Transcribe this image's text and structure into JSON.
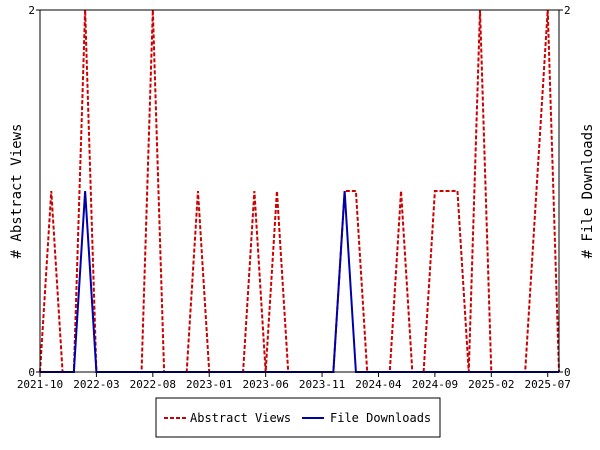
{
  "chart_data": {
    "type": "line",
    "title": "",
    "xlabel": "",
    "ylabel_left": "# Abstract Views",
    "ylabel_right": "# File Downloads",
    "x_tick_labels": [
      "2021-10",
      "2022-03",
      "2022-08",
      "2023-01",
      "2023-06",
      "2023-11",
      "2024-04",
      "2024-09",
      "2025-02",
      "2025-07"
    ],
    "y_left_ticks": [
      "0",
      "2"
    ],
    "y_right_ticks": [
      "0",
      "2"
    ],
    "ylim": [
      0,
      2
    ],
    "xlim": [
      "2021-10",
      "2025-08"
    ],
    "grid": false,
    "legend_position": "bottom-center",
    "x": [
      "2021-10",
      "2021-11",
      "2021-12",
      "2022-01",
      "2022-02",
      "2022-03",
      "2022-04",
      "2022-05",
      "2022-06",
      "2022-07",
      "2022-08",
      "2022-09",
      "2022-10",
      "2022-11",
      "2022-12",
      "2023-01",
      "2023-02",
      "2023-03",
      "2023-04",
      "2023-05",
      "2023-06",
      "2023-07",
      "2023-08",
      "2023-09",
      "2023-10",
      "2023-11",
      "2023-12",
      "2024-01",
      "2024-02",
      "2024-03",
      "2024-04",
      "2024-05",
      "2024-06",
      "2024-07",
      "2024-08",
      "2024-09",
      "2024-10",
      "2024-11",
      "2024-12",
      "2025-01",
      "2025-02",
      "2025-03",
      "2025-04",
      "2025-05",
      "2025-06",
      "2025-07",
      "2025-08"
    ],
    "series": [
      {
        "name": "Abstract Views",
        "color": "#cc0000",
        "dash": true,
        "values": [
          0,
          1,
          0,
          0,
          2,
          0,
          0,
          0,
          0,
          0,
          2,
          0,
          0,
          0,
          1,
          0,
          0,
          0,
          0,
          1,
          0,
          1,
          0,
          0,
          0,
          0,
          0,
          1,
          1,
          0,
          0,
          0,
          1,
          0,
          0,
          1,
          1,
          1,
          0,
          2,
          0,
          0,
          0,
          0,
          1,
          2,
          0
        ]
      },
      {
        "name": "File Downloads",
        "color": "#0000aa",
        "dash": false,
        "values": [
          0,
          0,
          0,
          0,
          1,
          0,
          0,
          0,
          0,
          0,
          0,
          0,
          0,
          0,
          0,
          0,
          0,
          0,
          0,
          0,
          0,
          0,
          0,
          0,
          0,
          0,
          0,
          1,
          0,
          0,
          0,
          0,
          0,
          0,
          0,
          0,
          0,
          0,
          0,
          0,
          0,
          0,
          0,
          0,
          0,
          0,
          0
        ]
      }
    ]
  }
}
